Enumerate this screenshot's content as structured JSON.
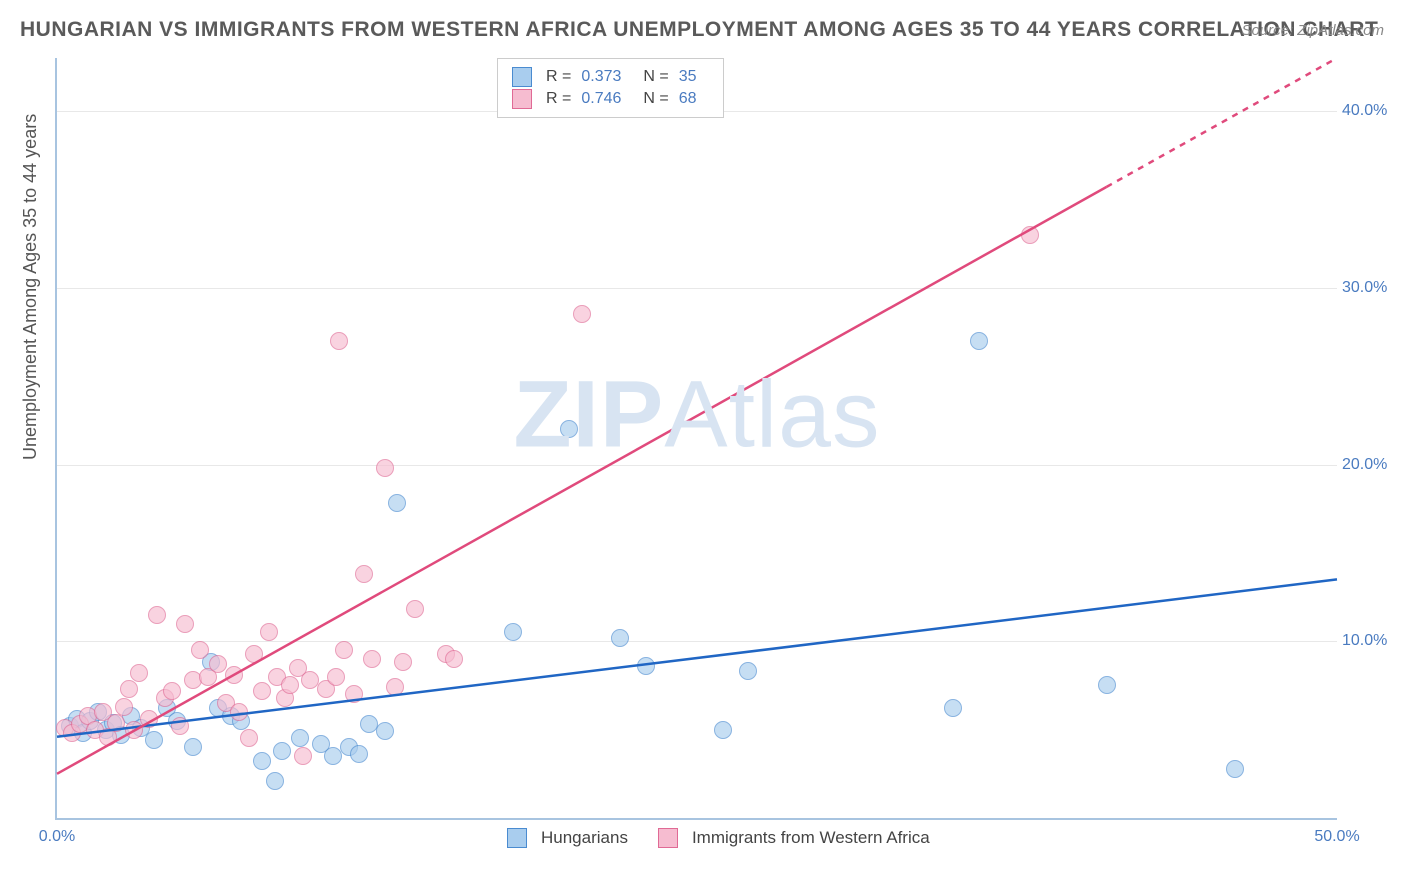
{
  "title": "HUNGARIAN VS IMMIGRANTS FROM WESTERN AFRICA UNEMPLOYMENT AMONG AGES 35 TO 44 YEARS CORRELATION CHART",
  "source": "Source: ZipAtlas.com",
  "ylabel": "Unemployment Among Ages 35 to 44 years",
  "watermark_bold": "ZIP",
  "watermark_rest": "Atlas",
  "chart": {
    "type": "scatter",
    "xlim": [
      0,
      50
    ],
    "ylim": [
      0,
      43
    ],
    "xticks": [
      {
        "v": 0,
        "label": "0.0%"
      },
      {
        "v": 50,
        "label": "50.0%"
      }
    ],
    "yticks": [
      {
        "v": 10,
        "label": "10.0%"
      },
      {
        "v": 20,
        "label": "20.0%"
      },
      {
        "v": 30,
        "label": "30.0%"
      },
      {
        "v": 40,
        "label": "40.0%"
      }
    ],
    "grid_color": "#e8e8e8",
    "axis_color": "#a8c4e0",
    "tick_color": "#4a7bc0",
    "marker_radius": 9,
    "marker_opacity": 0.65,
    "series": [
      {
        "name": "Hungarians",
        "fill": "#a9cdee",
        "stroke": "#4a8bd0",
        "trend_color": "#2066c4",
        "trend_width": 2.5,
        "trend": {
          "x1": 0,
          "y1": 4.6,
          "x2": 50,
          "y2": 13.5
        },
        "trend_dash_from_x": null,
        "R": "0.373",
        "N": "35",
        "points": [
          [
            0.5,
            5.2
          ],
          [
            0.8,
            5.6
          ],
          [
            1.0,
            4.8
          ],
          [
            1.3,
            5.5
          ],
          [
            1.6,
            6.0
          ],
          [
            1.9,
            5.0
          ],
          [
            2.2,
            5.4
          ],
          [
            2.5,
            4.7
          ],
          [
            2.9,
            5.8
          ],
          [
            3.3,
            5.1
          ],
          [
            3.8,
            4.4
          ],
          [
            4.3,
            6.2
          ],
          [
            4.7,
            5.5
          ],
          [
            5.3,
            4.0
          ],
          [
            6.0,
            8.8
          ],
          [
            6.3,
            6.2
          ],
          [
            6.8,
            5.8
          ],
          [
            7.2,
            5.5
          ],
          [
            8.0,
            3.2
          ],
          [
            8.5,
            2.1
          ],
          [
            8.8,
            3.8
          ],
          [
            9.5,
            4.5
          ],
          [
            10.3,
            4.2
          ],
          [
            10.8,
            3.5
          ],
          [
            11.4,
            4.0
          ],
          [
            11.8,
            3.6
          ],
          [
            12.2,
            5.3
          ],
          [
            12.8,
            4.9
          ],
          [
            13.3,
            17.8
          ],
          [
            17.8,
            10.5
          ],
          [
            20.0,
            22.0
          ],
          [
            22.0,
            10.2
          ],
          [
            23.0,
            8.6
          ],
          [
            26.0,
            5.0
          ],
          [
            27.0,
            8.3
          ],
          [
            35.0,
            6.2
          ],
          [
            36.0,
            27.0
          ],
          [
            41.0,
            7.5
          ],
          [
            46.0,
            2.8
          ]
        ]
      },
      {
        "name": "Immigrants from Western Africa",
        "fill": "#f6bcd0",
        "stroke": "#e06a95",
        "trend_color": "#e04a7c",
        "trend_width": 2.5,
        "trend": {
          "x1": 0,
          "y1": 2.5,
          "x2": 50,
          "y2": 43
        },
        "trend_dash_from_x": 41,
        "R": "0.746",
        "N": "68",
        "points": [
          [
            0.3,
            5.1
          ],
          [
            0.6,
            4.8
          ],
          [
            0.9,
            5.3
          ],
          [
            1.2,
            5.8
          ],
          [
            1.5,
            5.0
          ],
          [
            1.8,
            6.0
          ],
          [
            2.0,
            4.6
          ],
          [
            2.3,
            5.4
          ],
          [
            2.6,
            6.3
          ],
          [
            2.8,
            7.3
          ],
          [
            3.0,
            5.0
          ],
          [
            3.2,
            8.2
          ],
          [
            3.6,
            5.6
          ],
          [
            3.9,
            11.5
          ],
          [
            4.2,
            6.8
          ],
          [
            4.5,
            7.2
          ],
          [
            4.8,
            5.2
          ],
          [
            5.0,
            11.0
          ],
          [
            5.3,
            7.8
          ],
          [
            5.6,
            9.5
          ],
          [
            5.9,
            8.0
          ],
          [
            6.3,
            8.7
          ],
          [
            6.6,
            6.5
          ],
          [
            6.9,
            8.1
          ],
          [
            7.1,
            6.0
          ],
          [
            7.5,
            4.5
          ],
          [
            7.7,
            9.3
          ],
          [
            8.0,
            7.2
          ],
          [
            8.3,
            10.5
          ],
          [
            8.6,
            8.0
          ],
          [
            8.9,
            6.8
          ],
          [
            9.1,
            7.5
          ],
          [
            9.4,
            8.5
          ],
          [
            9.6,
            3.5
          ],
          [
            9.9,
            7.8
          ],
          [
            10.5,
            7.3
          ],
          [
            10.9,
            8.0
          ],
          [
            11.2,
            9.5
          ],
          [
            11.6,
            7.0
          ],
          [
            12.0,
            13.8
          ],
          [
            12.3,
            9.0
          ],
          [
            12.8,
            19.8
          ],
          [
            13.2,
            7.4
          ],
          [
            13.5,
            8.8
          ],
          [
            14.0,
            11.8
          ],
          [
            15.2,
            9.3
          ],
          [
            15.5,
            9.0
          ],
          [
            20.5,
            28.5
          ],
          [
            11.0,
            27.0
          ],
          [
            38.0,
            33.0
          ]
        ]
      }
    ]
  },
  "legend_bottom": {
    "items": [
      {
        "label": "Hungarians",
        "fill": "#a9cdee",
        "stroke": "#4a8bd0"
      },
      {
        "label": "Immigrants from Western Africa",
        "fill": "#f6bcd0",
        "stroke": "#e06a95"
      }
    ]
  }
}
